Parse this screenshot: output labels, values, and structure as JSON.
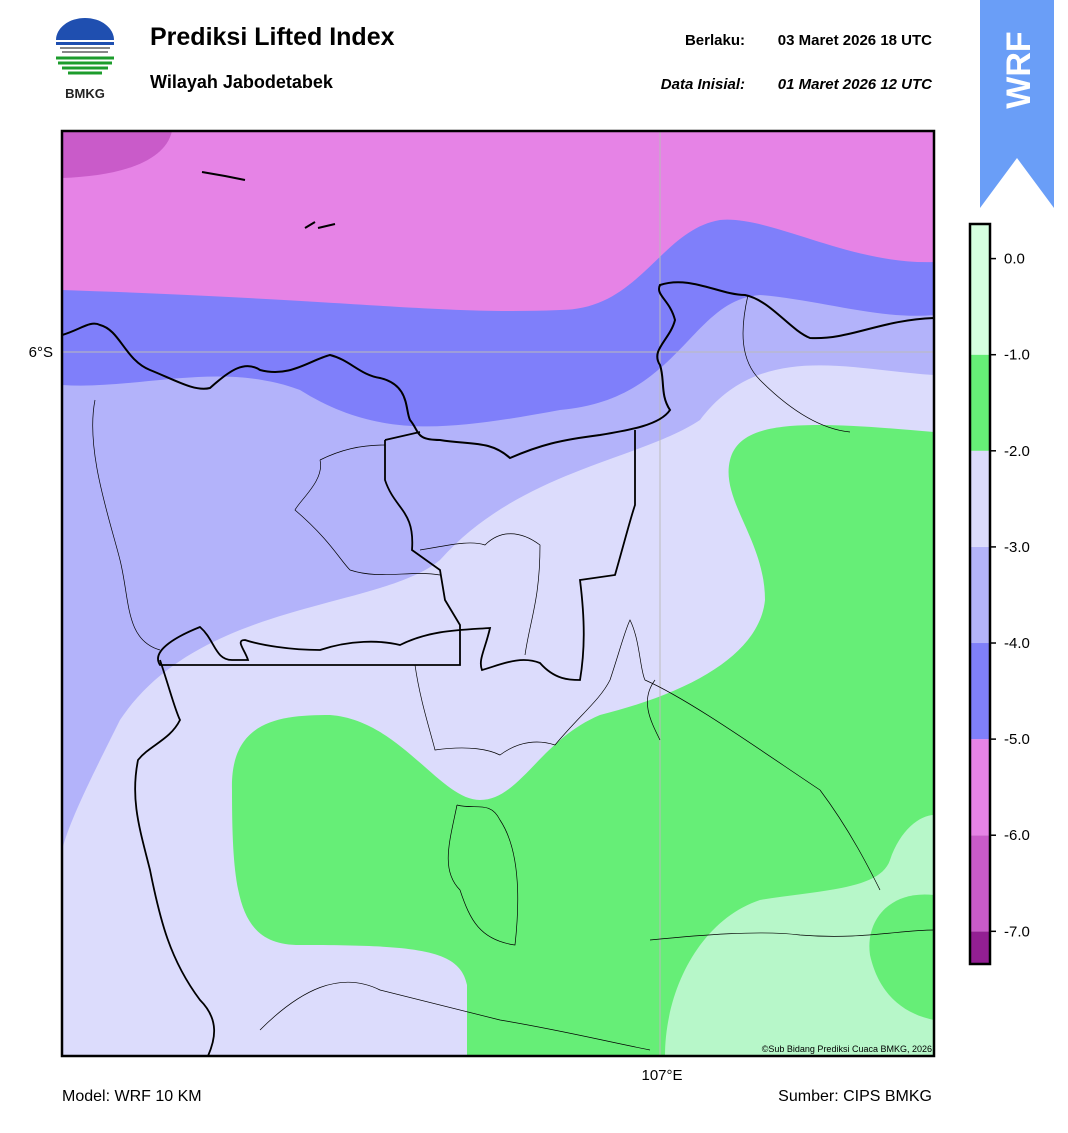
{
  "header": {
    "logo_text": "BMKG",
    "title": "Prediksi Lifted Index",
    "subtitle": "Wilayah Jabodetabek",
    "valid_label": "Berlaku:",
    "valid_time": "03 Maret 2026 18 UTC",
    "init_label": "Data Inisial:",
    "init_time": "01 Maret 2026 12 UTC",
    "badge": "WRF"
  },
  "map": {
    "lat_label": "6°S",
    "lon_label": "107°E",
    "credit": "©Sub Bidang Prediksi Cuaca BMKG, 2026"
  },
  "colorbar": {
    "range": [
      -7.34,
      0.36
    ],
    "levels": [
      -7,
      -6,
      -5,
      -4,
      -3,
      -2,
      -1
    ],
    "colors": [
      "#931f93",
      "#c95bc9",
      "#e683e6",
      "#7f7ffa",
      "#b3b3fa",
      "#dcdcfc",
      "#66ee77",
      "#d6ffe0"
    ],
    "ticks": [
      {
        "value": 0,
        "label": "0.0"
      },
      {
        "value": -1,
        "label": "-1.0"
      },
      {
        "value": -2,
        "label": "-2.0"
      },
      {
        "value": -3,
        "label": "-3.0"
      },
      {
        "value": -4,
        "label": "-4.0"
      },
      {
        "value": -5,
        "label": "-5.0"
      },
      {
        "value": -6,
        "label": "-6.0"
      },
      {
        "value": -7,
        "label": "-7.0"
      }
    ]
  },
  "footer": {
    "model": "Model: WRF 10 KM",
    "source": "Sumber: CIPS BMKG"
  }
}
